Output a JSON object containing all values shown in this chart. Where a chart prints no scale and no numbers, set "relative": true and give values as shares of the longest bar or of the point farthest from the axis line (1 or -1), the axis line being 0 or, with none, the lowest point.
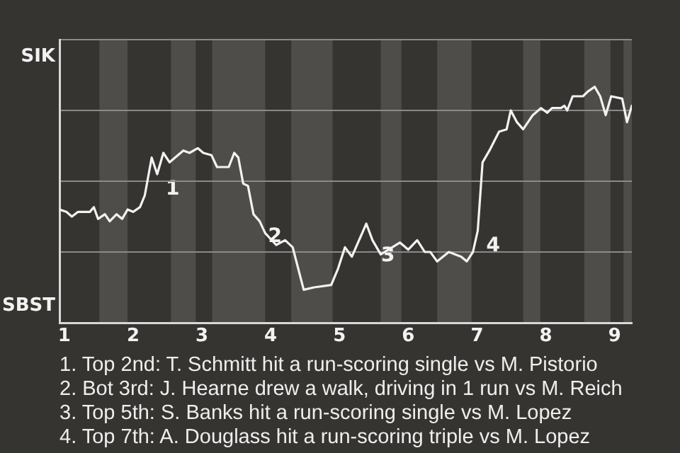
{
  "chart_data": {
    "type": "line",
    "x": [
      0.93,
      1.03,
      1.11,
      1.2,
      1.37,
      1.43,
      1.49,
      1.59,
      1.66,
      1.76,
      1.84,
      1.92,
      2,
      2.1,
      2.17,
      2.27,
      2.35,
      2.44,
      2.53,
      2.73,
      2.82,
      2.94,
      3.02,
      3.14,
      3.22,
      3.39,
      3.47,
      3.53,
      3.6,
      3.67,
      3.75,
      3.84,
      3.92,
      4.08,
      4.21,
      4.32,
      4.48,
      4.63,
      4.88,
      4.98,
      5.08,
      5.18,
      5.39,
      5.48,
      5.6,
      5.88,
      6,
      6.13,
      6.24,
      6.32,
      6.42,
      6.59,
      6.77,
      6.85,
      6.94,
      7.01,
      7.08,
      7.18,
      7.32,
      7.43,
      7.49,
      7.58,
      7.67,
      7.81,
      7.93,
      8.02,
      8.09,
      8.22,
      8.27,
      8.31,
      8.39,
      8.54,
      8.61,
      8.71,
      8.79,
      8.87,
      8.95,
      9.11,
      9.18,
      9.25
    ],
    "series": [
      {
        "color": "#f2f2f2",
        "values": [
          0.48,
          0.47,
          0.45,
          0.47,
          0.47,
          0.49,
          0.44,
          0.46,
          0.43,
          0.46,
          0.44,
          0.48,
          0.47,
          0.49,
          0.54,
          0.7,
          0.63,
          0.72,
          0.68,
          0.73,
          0.72,
          0.74,
          0.72,
          0.71,
          0.66,
          0.66,
          0.72,
          0.7,
          0.59,
          0.58,
          0.46,
          0.43,
          0.38,
          0.33,
          0.35,
          0.32,
          0.14,
          0.15,
          0.16,
          0.23,
          0.32,
          0.28,
          0.42,
          0.35,
          0.29,
          0.34,
          0.31,
          0.35,
          0.3,
          0.3,
          0.26,
          0.3,
          0.28,
          0.26,
          0.3,
          0.39,
          0.68,
          0.73,
          0.81,
          0.82,
          0.9,
          0.85,
          0.82,
          0.88,
          0.91,
          0.89,
          0.91,
          0.91,
          0.92,
          0.9,
          0.96,
          0.96,
          0.98,
          1,
          0.96,
          0.88,
          0.96,
          0.95,
          0.85,
          0.92
        ]
      }
    ],
    "relative": true,
    "xlim": [
      0.93,
      9.25
    ],
    "xticks": [
      1,
      2,
      3,
      4,
      5,
      6,
      7,
      8,
      9
    ],
    "bands": [
      {
        "axis": "x",
        "from": 1.51,
        "to": 1.92,
        "color": "#4f4d4a"
      },
      {
        "axis": "x",
        "from": 2.55,
        "to": 2.91,
        "color": "#4f4d4a"
      },
      {
        "axis": "x",
        "from": 3.15,
        "to": 3.92,
        "color": "#4f4d4a"
      },
      {
        "axis": "x",
        "from": 4.3,
        "to": 4.9,
        "color": "#4f4d4a"
      },
      {
        "axis": "x",
        "from": 5.6,
        "to": 5.9,
        "color": "#4f4d4a"
      },
      {
        "axis": "x",
        "from": 6.42,
        "to": 6.92,
        "color": "#4f4d4a"
      },
      {
        "axis": "x",
        "from": 7.67,
        "to": 7.92,
        "color": "#4f4d4a"
      },
      {
        "axis": "x",
        "from": 8.56,
        "to": 8.94,
        "color": "#4f4d4a"
      },
      {
        "axis": "x",
        "from": 9.13,
        "to": 9.25,
        "color": "#4f4d4a"
      }
    ],
    "annotations": [
      "SIK",
      "SBST",
      {
        "text": "1",
        "x": 2.35,
        "y": 0.63
      },
      {
        "text": "2",
        "x": 3.84,
        "y": 0.43
      },
      {
        "text": "3",
        "x": 5.48,
        "y": 0.35
      },
      {
        "text": "4",
        "x": 7.01,
        "y": 0.39
      },
      "1. Top 2nd: T. Schmitt hit a run-scoring single vs M. Pistorio",
      "2. Bot 3rd: J. Hearne drew a walk, driving in 1 run vs M. Reich",
      "3. Top 5th: S. Banks hit a run-scoring single vs M. Lopez",
      "4. Top 7th: A. Douglass hit a run-scoring triple vs M. Lopez"
    ],
    "grid": "y",
    "marker": "none",
    "line_style": "solid"
  }
}
